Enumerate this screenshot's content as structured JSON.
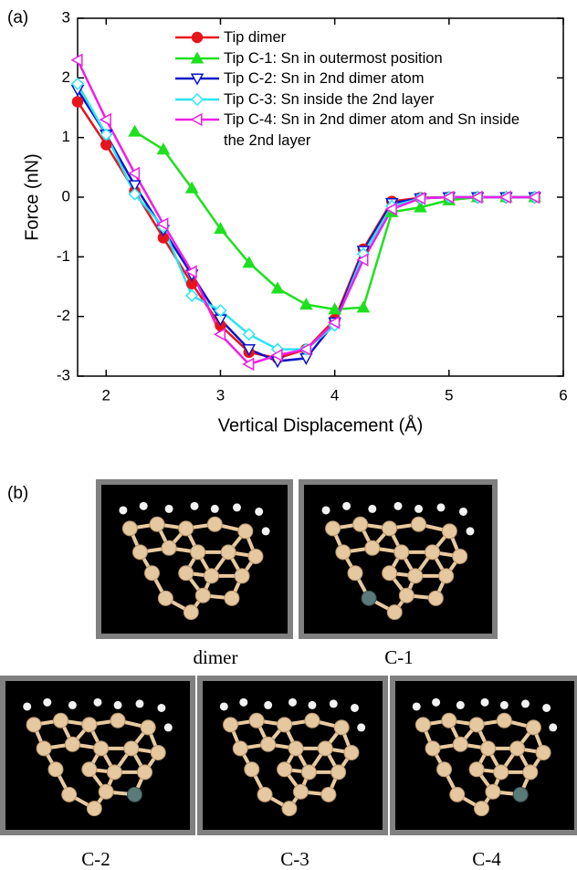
{
  "panel_labels": [
    "(a)",
    "(b)"
  ],
  "chart_data": {
    "type": "line",
    "x_label": "Vertical Displacement (Å)",
    "y_label": "Force (nN)",
    "x": [
      1.75,
      2,
      2.25,
      2.5,
      2.75,
      3,
      3.25,
      3.5,
      3.75,
      4,
      4.25,
      4.5,
      4.75,
      5,
      5.25,
      5.5,
      5.75
    ],
    "series": [
      {
        "name": "Tip dimer",
        "color": "#e8141c",
        "marker": "circle",
        "values": [
          1.6,
          0.88,
          0.1,
          -0.68,
          -1.45,
          -2.15,
          -2.6,
          -2.7,
          -2.55,
          -2.05,
          -0.87,
          -0.07,
          -0.01,
          0,
          0,
          0,
          0
        ]
      },
      {
        "name": "Tip C-1: Sn in outermost position",
        "color": "#1ee01e",
        "marker": "triangle-up",
        "values": [
          null,
          null,
          1.1,
          0.8,
          0.15,
          -0.53,
          -1.1,
          -1.53,
          -1.8,
          -1.88,
          -1.85,
          -0.25,
          -0.17,
          -0.05,
          0,
          0,
          0
        ]
      },
      {
        "name": "Tip C-2: Sn in 2nd dimer atom",
        "color": "#0a14c8",
        "marker": "triangle-down",
        "values": [
          1.8,
          1.05,
          0.2,
          -0.55,
          -1.3,
          -2.05,
          -2.55,
          -2.75,
          -2.7,
          -2.1,
          -0.9,
          -0.1,
          -0.02,
          0,
          0,
          0,
          0
        ]
      },
      {
        "name": "Tip C-3: Sn inside the 2nd layer",
        "color": "#28e6f0",
        "marker": "diamond",
        "values": [
          1.9,
          1.05,
          0.05,
          -0.5,
          -1.65,
          -1.9,
          -2.3,
          -2.55,
          -2.55,
          -2.15,
          -0.95,
          -0.15,
          -0.02,
          0,
          0,
          0,
          0
        ]
      },
      {
        "name": "Tip C-4: Sn in 2nd dimer atom and Sn inside the 2nd layer",
        "color": "#f01ee6",
        "marker": "triangle-left",
        "values": [
          2.3,
          1.3,
          0.4,
          -0.45,
          -1.25,
          -2.3,
          -2.8,
          -2.65,
          -2.55,
          -2.1,
          -1.05,
          -0.2,
          -0.02,
          0,
          0,
          0,
          0
        ]
      }
    ],
    "xlim": [
      1.75,
      6
    ],
    "xticks": [
      2,
      3,
      4,
      5,
      6
    ],
    "ylim": [
      -3,
      3
    ],
    "yticks": [
      -3,
      -2,
      -1,
      0,
      1,
      2,
      3
    ],
    "grid": false,
    "legend": "upper right"
  },
  "structures": [
    "dimer",
    "C-1",
    "C-2",
    "C-3",
    "C-4"
  ]
}
